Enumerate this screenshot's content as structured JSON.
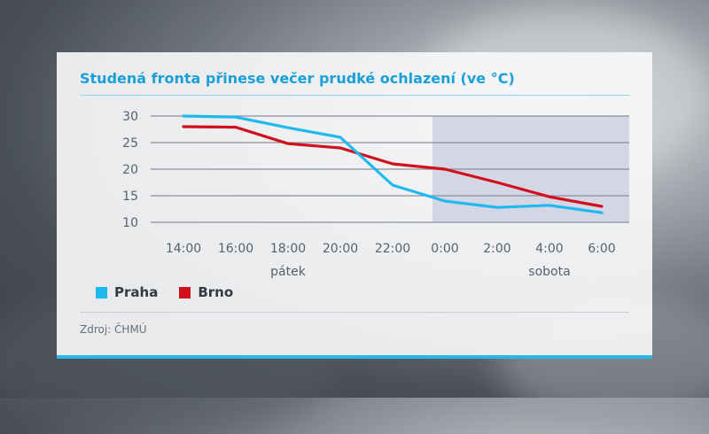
{
  "chart_data": {
    "type": "line",
    "title": "Studená fronta přinese večer prudké ochlazení (ve °C)",
    "categories": [
      "14:00",
      "16:00",
      "18:00",
      "20:00",
      "22:00",
      "0:00",
      "2:00",
      "4:00",
      "6:00"
    ],
    "day_labels": [
      {
        "label": "pátek",
        "at": "18:00"
      },
      {
        "label": "sobota",
        "at": "4:00"
      }
    ],
    "shaded_from": "0:00",
    "ylim": [
      10,
      30
    ],
    "yticks": [
      10,
      15,
      20,
      25,
      30
    ],
    "grid": true,
    "legend_position": "bottom-left",
    "series": [
      {
        "name": "Praha",
        "color": "#1fb8ef",
        "values": [
          30,
          29.8,
          27.8,
          26,
          17,
          14,
          12.8,
          13.2,
          11.8
        ]
      },
      {
        "name": "Brno",
        "color": "#d0101c",
        "values": [
          28,
          27.9,
          24.8,
          24,
          21,
          20,
          17.5,
          14.8,
          13
        ]
      }
    ],
    "source": "Zdroj: ČHMÚ"
  }
}
